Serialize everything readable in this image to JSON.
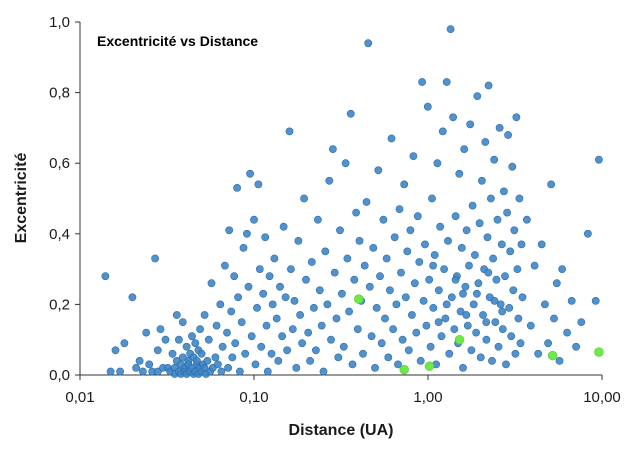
{
  "chart_data": {
    "type": "scatter",
    "title": "Excentricité vs Distance",
    "xlabel": "Distance (UA)",
    "ylabel": "Excentricité",
    "x_scale": "log",
    "xlim": [
      0.01,
      10
    ],
    "ylim": [
      0,
      1
    ],
    "x_ticks": [
      "0,01",
      "0,10",
      "1,00",
      "10,00"
    ],
    "y_ticks": [
      "0,0",
      "0,2",
      "0,4",
      "0,6",
      "0,8",
      "1,0"
    ],
    "grid": false,
    "colors": {
      "series1": "#3f86c6",
      "series1_edge": "#2a6aa8",
      "series2": "#6ee84a"
    },
    "series": [
      {
        "points": [
          [
            0.014,
            0.28
          ],
          [
            0.015,
            0.01
          ],
          [
            0.016,
            0.07
          ],
          [
            0.017,
            0.01
          ],
          [
            0.018,
            0.09
          ],
          [
            0.02,
            0.22
          ],
          [
            0.021,
            0.02
          ],
          [
            0.022,
            0.04
          ],
          [
            0.023,
            0.01
          ],
          [
            0.024,
            0.12
          ],
          [
            0.025,
            0.03
          ],
          [
            0.026,
            0.01
          ],
          [
            0.027,
            0.33
          ],
          [
            0.028,
            0.01
          ],
          [
            0.028,
            0.07
          ],
          [
            0.029,
            0.13
          ],
          [
            0.03,
            0.02
          ],
          [
            0.031,
            0.1
          ],
          [
            0.032,
            0.02
          ],
          [
            0.033,
            0.01
          ],
          [
            0.034,
            0.06
          ],
          [
            0.035,
            0.02
          ],
          [
            0.035,
            0.0
          ],
          [
            0.036,
            0.17
          ],
          [
            0.036,
            0.04
          ],
          [
            0.037,
            0.01
          ],
          [
            0.037,
            0.1
          ],
          [
            0.038,
            0.03
          ],
          [
            0.038,
            0.0
          ],
          [
            0.039,
            0.05
          ],
          [
            0.039,
            0.15
          ],
          [
            0.04,
            0.02
          ],
          [
            0.04,
            0.01
          ],
          [
            0.041,
            0.08
          ],
          [
            0.041,
            0.0
          ],
          [
            0.042,
            0.04
          ],
          [
            0.042,
            0.03
          ],
          [
            0.043,
            0.06
          ],
          [
            0.043,
            0.01
          ],
          [
            0.044,
            0.11
          ],
          [
            0.044,
            0.02
          ],
          [
            0.045,
            0.0
          ],
          [
            0.045,
            0.05
          ],
          [
            0.046,
            0.09
          ],
          [
            0.046,
            0.01
          ],
          [
            0.047,
            0.03
          ],
          [
            0.047,
            0.04
          ],
          [
            0.048,
            0.07
          ],
          [
            0.048,
            0.0
          ],
          [
            0.049,
            0.02
          ],
          [
            0.049,
            0.13
          ],
          [
            0.05,
            0.01
          ],
          [
            0.05,
            0.06
          ],
          [
            0.051,
            0.03
          ],
          [
            0.052,
            0.02
          ],
          [
            0.052,
            0.17
          ],
          [
            0.053,
            0.0
          ],
          [
            0.054,
            0.04
          ],
          [
            0.055,
            0.1
          ],
          [
            0.056,
            0.01
          ],
          [
            0.057,
            0.26
          ],
          [
            0.058,
            0.02
          ],
          [
            0.06,
            0.05
          ],
          [
            0.061,
            0.14
          ],
          [
            0.062,
            0.03
          ],
          [
            0.064,
            0.2
          ],
          [
            0.065,
            0.01
          ],
          [
            0.066,
            0.08
          ],
          [
            0.068,
            0.31
          ],
          [
            0.07,
            0.12
          ],
          [
            0.071,
            0.02
          ],
          [
            0.072,
            0.41
          ],
          [
            0.074,
            0.18
          ],
          [
            0.075,
            0.05
          ],
          [
            0.077,
            0.28
          ],
          [
            0.078,
            0.09
          ],
          [
            0.08,
            0.53
          ],
          [
            0.081,
            0.22
          ],
          [
            0.083,
            0.01
          ],
          [
            0.085,
            0.15
          ],
          [
            0.087,
            0.36
          ],
          [
            0.089,
            0.06
          ],
          [
            0.091,
            0.4
          ],
          [
            0.093,
            0.25
          ],
          [
            0.095,
            0.57
          ],
          [
            0.097,
            0.11
          ],
          [
            0.1,
            0.44
          ],
          [
            0.102,
            0.03
          ],
          [
            0.104,
            0.19
          ],
          [
            0.106,
            0.54
          ],
          [
            0.108,
            0.3
          ],
          [
            0.11,
            0.08
          ],
          [
            0.113,
            0.23
          ],
          [
            0.116,
            0.39
          ],
          [
            0.118,
            0.14
          ],
          [
            0.12,
            0.01
          ],
          [
            0.123,
            0.28
          ],
          [
            0.126,
            0.06
          ],
          [
            0.128,
            0.2
          ],
          [
            0.131,
            0.33
          ],
          [
            0.135,
            0.16
          ],
          [
            0.138,
            0.04
          ],
          [
            0.141,
            0.25
          ],
          [
            0.145,
            0.11
          ],
          [
            0.148,
            0.42
          ],
          [
            0.152,
            0.22
          ],
          [
            0.155,
            0.07
          ],
          [
            0.16,
            0.69
          ],
          [
            0.163,
            0.3
          ],
          [
            0.167,
            0.13
          ],
          [
            0.171,
            0.21
          ],
          [
            0.175,
            0.02
          ],
          [
            0.18,
            0.38
          ],
          [
            0.184,
            0.17
          ],
          [
            0.189,
            0.09
          ],
          [
            0.194,
            0.5
          ],
          [
            0.199,
            0.27
          ],
          [
            0.205,
            0.12
          ],
          [
            0.21,
            0.04
          ],
          [
            0.215,
            0.32
          ],
          [
            0.221,
            0.19
          ],
          [
            0.227,
            0.07
          ],
          [
            0.233,
            0.44
          ],
          [
            0.239,
            0.24
          ],
          [
            0.245,
            0.14
          ],
          [
            0.251,
            0.01
          ],
          [
            0.257,
            0.35
          ],
          [
            0.264,
            0.2
          ],
          [
            0.271,
            0.55
          ],
          [
            0.277,
            0.1
          ],
          [
            0.284,
            0.64
          ],
          [
            0.291,
            0.29
          ],
          [
            0.298,
            0.16
          ],
          [
            0.305,
            0.05
          ],
          [
            0.312,
            0.41
          ],
          [
            0.32,
            0.23
          ],
          [
            0.328,
            0.08
          ],
          [
            0.336,
            0.6
          ],
          [
            0.344,
            0.33
          ],
          [
            0.352,
            0.18
          ],
          [
            0.36,
            0.74
          ],
          [
            0.368,
            0.03
          ],
          [
            0.377,
            0.27
          ],
          [
            0.386,
            0.46
          ],
          [
            0.395,
            0.13
          ],
          [
            0.404,
            0.38
          ],
          [
            0.413,
            0.21
          ],
          [
            0.423,
            0.06
          ],
          [
            0.433,
            0.31
          ],
          [
            0.443,
            0.49
          ],
          [
            0.453,
            0.94
          ],
          [
            0.463,
            0.25
          ],
          [
            0.474,
            0.11
          ],
          [
            0.485,
            0.36
          ],
          [
            0.496,
            0.02
          ],
          [
            0.507,
            0.19
          ],
          [
            0.518,
            0.58
          ],
          [
            0.53,
            0.28
          ],
          [
            0.542,
            0.09
          ],
          [
            0.554,
            0.44
          ],
          [
            0.566,
            0.16
          ],
          [
            0.579,
            0.33
          ],
          [
            0.591,
            0.05
          ],
          [
            0.604,
            0.24
          ],
          [
            0.617,
            0.67
          ],
          [
            0.63,
            0.13
          ],
          [
            0.644,
            0.39
          ],
          [
            0.658,
            0.2
          ],
          [
            0.672,
            0.03
          ],
          [
            0.686,
            0.47
          ],
          [
            0.7,
            0.29
          ],
          [
            0.715,
            0.1
          ],
          [
            0.73,
            0.54
          ],
          [
            0.745,
            0.22
          ],
          [
            0.76,
            0.35
          ],
          [
            0.776,
            0.07
          ],
          [
            0.792,
            0.41
          ],
          [
            0.808,
            0.17
          ],
          [
            0.824,
            0.62
          ],
          [
            0.84,
            0.26
          ],
          [
            0.857,
            0.12
          ],
          [
            0.874,
            0.45
          ],
          [
            0.891,
            0.32
          ],
          [
            0.908,
            0.04
          ],
          [
            0.925,
            0.83
          ],
          [
            0.943,
            0.21
          ],
          [
            0.961,
            0.37
          ],
          [
            0.979,
            0.14
          ],
          [
            0.997,
            0.76
          ],
          [
            1.016,
            0.27
          ],
          [
            1.035,
            0.08
          ],
          [
            1.054,
            0.5
          ],
          [
            1.073,
            0.19
          ],
          [
            1.093,
            0.34
          ],
          [
            1.113,
            0.03
          ],
          [
            1.133,
            0.6
          ],
          [
            1.153,
            0.24
          ],
          [
            1.174,
            0.42
          ],
          [
            1.195,
            0.11
          ],
          [
            1.216,
            0.69
          ],
          [
            1.237,
            0.3
          ],
          [
            1.259,
            0.16
          ],
          [
            1.281,
            0.83
          ],
          [
            1.303,
            0.38
          ],
          [
            1.325,
            0.06
          ],
          [
            1.348,
            0.98
          ],
          [
            1.371,
            0.22
          ],
          [
            1.394,
            0.73
          ],
          [
            1.417,
            0.13
          ],
          [
            1.441,
            0.45
          ],
          [
            1.465,
            0.28
          ],
          [
            1.489,
            0.09
          ],
          [
            1.514,
            0.57
          ],
          [
            1.539,
            0.18
          ],
          [
            1.564,
            0.36
          ],
          [
            1.589,
            0.02
          ],
          [
            1.615,
            0.64
          ],
          [
            1.641,
            0.25
          ],
          [
            1.667,
            0.41
          ],
          [
            1.694,
            0.14
          ],
          [
            1.721,
            0.31
          ],
          [
            1.748,
            0.71
          ],
          [
            1.776,
            0.07
          ],
          [
            1.804,
            0.48
          ],
          [
            1.832,
            0.2
          ],
          [
            1.861,
            0.34
          ],
          [
            1.89,
            0.12
          ],
          [
            1.919,
            0.79
          ],
          [
            1.949,
            0.26
          ],
          [
            1.979,
            0.43
          ],
          [
            2.009,
            0.05
          ],
          [
            2.04,
            0.55
          ],
          [
            2.071,
            0.17
          ],
          [
            2.102,
            0.3
          ],
          [
            2.134,
            0.66
          ],
          [
            2.166,
            0.1
          ],
          [
            2.198,
            0.39
          ],
          [
            2.231,
            0.82
          ],
          [
            2.264,
            0.22
          ],
          [
            2.298,
            0.5
          ],
          [
            2.332,
            0.04
          ],
          [
            2.366,
            0.33
          ],
          [
            2.401,
            0.61
          ],
          [
            2.436,
            0.15
          ],
          [
            2.471,
            0.27
          ],
          [
            2.507,
            0.44
          ],
          [
            2.543,
            0.08
          ],
          [
            2.58,
            0.7
          ],
          [
            2.617,
            0.2
          ],
          [
            2.654,
            0.37
          ],
          [
            2.692,
            0.13
          ],
          [
            2.73,
            0.52
          ],
          [
            2.769,
            0.28
          ],
          [
            2.808,
            0.03
          ],
          [
            2.847,
            0.46
          ],
          [
            2.887,
            0.68
          ],
          [
            2.927,
            0.19
          ],
          [
            2.968,
            0.35
          ],
          [
            3.009,
            0.11
          ],
          [
            3.051,
            0.59
          ],
          [
            3.093,
            0.24
          ],
          [
            3.135,
            0.41
          ],
          [
            3.178,
            0.06
          ],
          [
            3.221,
            0.73
          ],
          [
            3.265,
            0.3
          ],
          [
            3.309,
            0.16
          ],
          [
            3.354,
            0.5
          ],
          [
            3.399,
            0.09
          ],
          [
            3.445,
            0.37
          ],
          [
            3.491,
            0.22
          ],
          [
            3.7,
            0.44
          ],
          [
            3.9,
            0.14
          ],
          [
            4.1,
            0.31
          ],
          [
            4.3,
            0.06
          ],
          [
            4.5,
            0.37
          ],
          [
            4.7,
            0.2
          ],
          [
            4.9,
            0.09
          ],
          [
            5.1,
            0.54
          ],
          [
            5.3,
            0.16
          ],
          [
            5.5,
            0.26
          ],
          [
            5.7,
            0.04
          ],
          [
            5.9,
            0.3
          ],
          [
            6.3,
            0.12
          ],
          [
            6.7,
            0.21
          ],
          [
            7.1,
            0.08
          ],
          [
            7.6,
            0.15
          ],
          [
            8.3,
            0.4
          ],
          [
            9.2,
            0.21
          ],
          [
            9.6,
            0.61
          ],
          [
            1.07,
            0.31
          ],
          [
            1.28,
            0.2
          ],
          [
            1.44,
            0.27
          ],
          [
            1.66,
            0.17
          ],
          [
            1.91,
            0.23
          ],
          [
            2.16,
            0.15
          ],
          [
            2.41,
            0.21
          ],
          [
            2.67,
            0.18
          ],
          [
            1.15,
            0.15
          ],
          [
            1.59,
            0.23
          ],
          [
            2.22,
            0.29
          ]
        ]
      },
      {
        "points": [
          [
            0.4,
            0.215
          ],
          [
            0.73,
            0.015
          ],
          [
            1.02,
            0.025
          ],
          [
            1.52,
            0.1
          ],
          [
            5.2,
            0.055
          ],
          [
            9.6,
            0.065
          ]
        ]
      }
    ]
  }
}
